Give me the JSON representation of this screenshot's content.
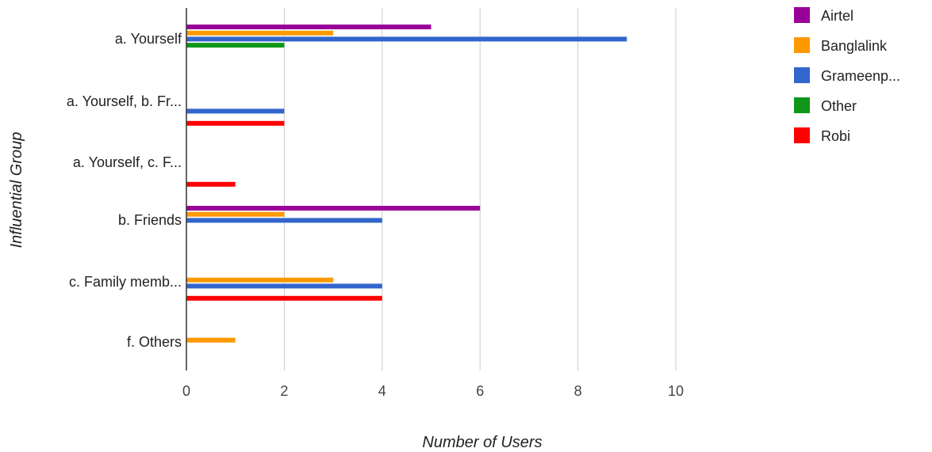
{
  "chart_data": {
    "type": "bar",
    "orientation": "horizontal",
    "xlabel": "Number of Users",
    "ylabel": "Influential Group",
    "xlim": [
      0,
      10
    ],
    "xticks": [
      "0",
      "2",
      "4",
      "6",
      "8",
      "10"
    ],
    "grid": true,
    "legend_position": "right",
    "categories": [
      "a. Yourself",
      "a. Yourself, b. Fr...",
      "a. Yourself, c. F...",
      "b. Friends",
      "c. Family memb...",
      "f. Others"
    ],
    "series": [
      {
        "name": "Airtel",
        "color": "#990099",
        "values": [
          5,
          0,
          0,
          6,
          0,
          0
        ]
      },
      {
        "name": "Banglalink",
        "color": "#ff9900",
        "values": [
          3,
          0,
          0,
          2,
          3,
          1
        ]
      },
      {
        "name": "Grameenp...",
        "color": "#3366cc",
        "values": [
          9,
          2,
          0,
          4,
          4,
          0
        ]
      },
      {
        "name": "Other",
        "color": "#109618",
        "values": [
          2,
          0,
          0,
          0,
          0,
          0
        ]
      },
      {
        "name": "Robi",
        "color": "#ff0000",
        "values": [
          0,
          2,
          1,
          0,
          4,
          0
        ]
      }
    ]
  }
}
